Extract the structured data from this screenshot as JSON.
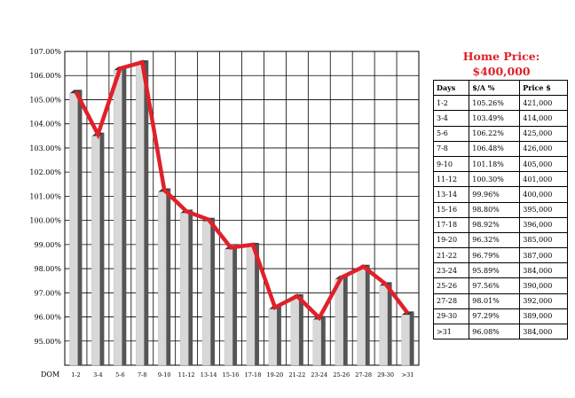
{
  "home_price": {
    "title_line1": "Home Price:",
    "title_line2": "$400,000",
    "color": "#e0202a"
  },
  "table": {
    "headers": [
      "Days",
      "$/A %",
      "Price $"
    ],
    "rows": [
      [
        "1-2",
        "105.26%",
        "421,000"
      ],
      [
        "3-4",
        "103.49%",
        "414,000"
      ],
      [
        "5-6",
        "106.22%",
        "425,000"
      ],
      [
        "7-8",
        "106.48%",
        "426,000"
      ],
      [
        "9-10",
        "101.18%",
        "405,000"
      ],
      [
        "11-12",
        "100.30%",
        "401,000"
      ],
      [
        "13-14",
        "99.96%",
        "400,000"
      ],
      [
        "15-16",
        "98.80%",
        "395,000"
      ],
      [
        "17-18",
        "98.92%",
        "396,000"
      ],
      [
        "19-20",
        "96.32%",
        "385,000"
      ],
      [
        "21-22",
        "96.79%",
        "387,000"
      ],
      [
        "23-24",
        "95.89%",
        "384,000"
      ],
      [
        "25-26",
        "97.56%",
        "390,000"
      ],
      [
        "27-28",
        "98.01%",
        "392,000"
      ],
      [
        "29-30",
        "97.29%",
        "389,000"
      ],
      [
        ">31",
        "96.08%",
        "384,000"
      ]
    ]
  },
  "chart_data": {
    "type": "bar",
    "xlabel": "DOM",
    "categories": [
      "1-2",
      "3-4",
      "5-6",
      "7-8",
      "9-10",
      "11-12",
      "13-14",
      "15-16",
      "17-18",
      "19-20",
      "21-22",
      "23-24",
      "25-26",
      "27-28",
      "29-30",
      ">31"
    ],
    "series": [
      {
        "values": [
          105.26,
          103.49,
          106.22,
          106.48,
          101.18,
          100.3,
          99.96,
          98.8,
          98.92,
          96.32,
          96.79,
          95.89,
          97.56,
          98.01,
          97.29,
          96.08
        ],
        "color": "#d8d8d8"
      },
      {
        "type": "line",
        "values": [
          105.26,
          103.49,
          106.22,
          106.48,
          101.18,
          100.3,
          99.96,
          98.8,
          98.92,
          96.32,
          96.79,
          95.89,
          97.56,
          98.01,
          97.29,
          96.08
        ],
        "color": "#e0202a"
      }
    ],
    "y_ticks": [
      "95.00%",
      "96.00%",
      "97.00%",
      "98.00%",
      "99.00%",
      "100.00%",
      "101.00%",
      "102.00%",
      "103.00%",
      "104.00%",
      "105.00%",
      "106.00%",
      "107.00%"
    ],
    "ylim": [
      94,
      107
    ],
    "grid": true,
    "bar_style": "3d-shaded",
    "colors": {
      "bar_face": "#d8d8d8",
      "bar_side": "#555555",
      "bar_top": "#3a3a3a",
      "line": "#e0202a",
      "grid": "#000000"
    }
  }
}
